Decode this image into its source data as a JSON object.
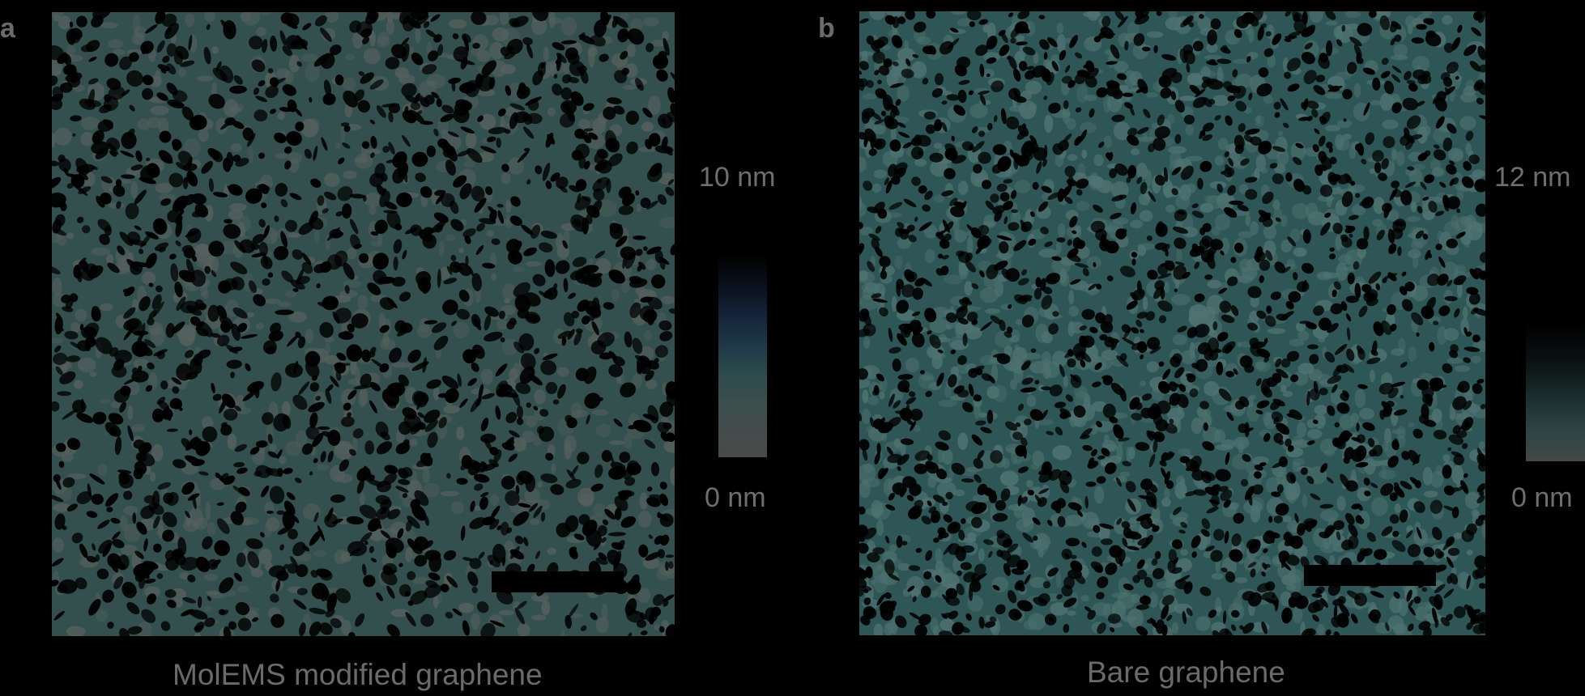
{
  "panels": [
    {
      "letter": "a",
      "caption": "MolEMS modified graphene",
      "colorbar": {
        "max_label": "10 nm",
        "min_label": "0 nm"
      },
      "texture": {
        "base_color": "#33504e",
        "pore_color": "#000000",
        "highlight_color": "#55605e"
      }
    },
    {
      "letter": "b",
      "caption": "Bare graphene",
      "colorbar": {
        "max_label": "12 nm",
        "min_label": "0 nm"
      },
      "texture": {
        "base_color": "#2f5656",
        "pore_color": "#000000",
        "highlight_color": "#4f7372"
      }
    }
  ]
}
